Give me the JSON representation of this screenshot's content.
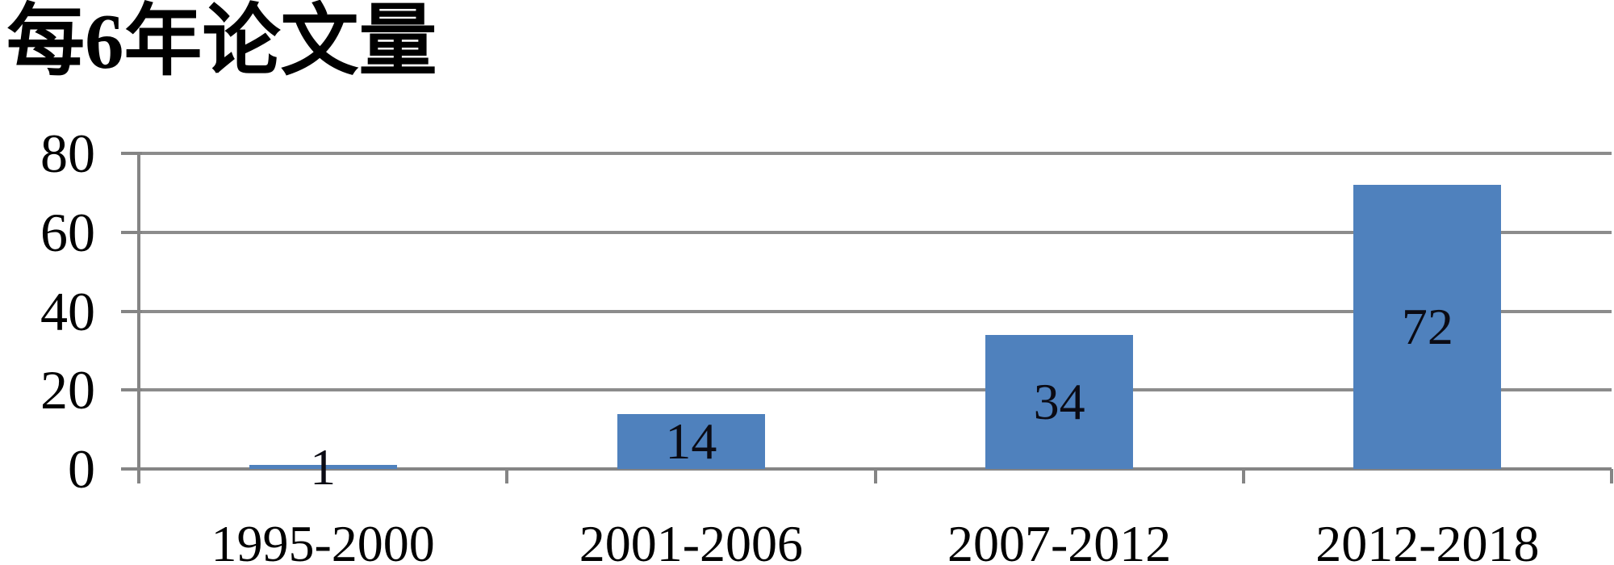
{
  "chart_data": {
    "type": "bar",
    "title": "每6年论文量",
    "categories": [
      "1995-2000",
      "2001-2006",
      "2007-2012",
      "2012-2018"
    ],
    "values": [
      1,
      14,
      34,
      72
    ],
    "xlabel": "",
    "ylabel": "",
    "ylim": [
      0,
      80
    ],
    "yticks": [
      0,
      20,
      40,
      60,
      80
    ],
    "grid": true,
    "legend_position": "none",
    "data_labels_position": "center-inside-bar",
    "colors": {
      "bar": "#4F81BD",
      "gridline": "#8C8C8C",
      "axis": "#858585",
      "text": "#000000"
    }
  }
}
